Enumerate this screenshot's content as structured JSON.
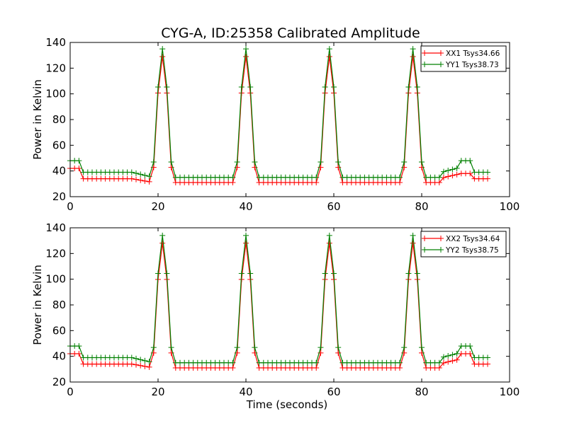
{
  "title": "CYG-A, ID:25358 Calibrated Amplitude",
  "chart_data": [
    {
      "type": "line",
      "xlabel": "",
      "ylabel": "Power in Kelvin",
      "xlim": [
        0,
        100
      ],
      "ylim": [
        20,
        140
      ],
      "xticks": [
        0,
        20,
        40,
        60,
        80,
        100
      ],
      "yticks": [
        20,
        40,
        60,
        80,
        100,
        120,
        140
      ],
      "legend_position": "top-right",
      "grid": false,
      "marker": "plus",
      "series": [
        {
          "name": "XX1 Tsys34.66",
          "color": "#ff0000",
          "profile": {
            "pre": 42,
            "base": 34,
            "mid_baseline": 31,
            "bump": 38,
            "tail": 34,
            "peak_value": 129
          }
        },
        {
          "name": "YY1 Tsys38.73",
          "color": "#008000",
          "profile": {
            "pre": 48,
            "base": 39,
            "mid_baseline": 35,
            "bump": 48,
            "tail": 39,
            "peak_value": 135
          }
        }
      ]
    },
    {
      "type": "line",
      "xlabel": "Time (seconds)",
      "ylabel": "Power in Kelvin",
      "xlim": [
        0,
        100
      ],
      "ylim": [
        20,
        140
      ],
      "xticks": [
        0,
        20,
        40,
        60,
        80,
        100
      ],
      "yticks": [
        20,
        40,
        60,
        80,
        100,
        120,
        140
      ],
      "legend_position": "top-right",
      "grid": false,
      "marker": "plus",
      "series": [
        {
          "name": "XX2 Tsys34.64",
          "color": "#ff0000",
          "profile": {
            "pre": 42,
            "base": 34,
            "mid_baseline": 31,
            "bump": 42,
            "tail": 34,
            "peak_value": 128
          }
        },
        {
          "name": "YY2 Tsys38.75",
          "color": "#008000",
          "profile": {
            "pre": 48,
            "base": 39,
            "mid_baseline": 35,
            "bump": 48,
            "tail": 39,
            "peak_value": 134
          }
        }
      ]
    }
  ],
  "peak_times": [
    21,
    40,
    59,
    78
  ],
  "sample_count": 96
}
